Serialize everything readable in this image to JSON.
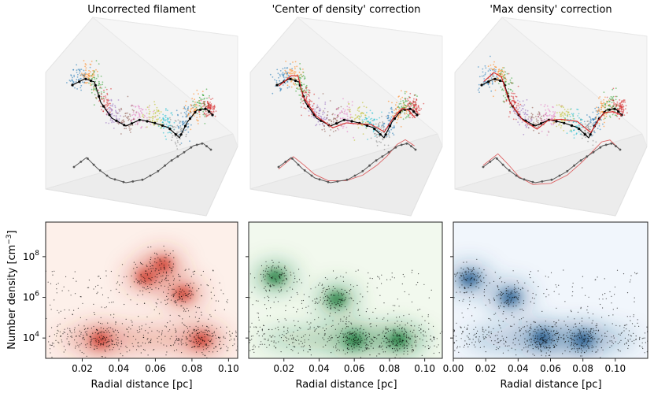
{
  "chart_data": [
    {
      "type": "scatter",
      "title": "Uncorrected filament",
      "projection": "3d",
      "axes_visible": false,
      "corrected_curve": false,
      "colors": {
        "points": "multicolor",
        "fit": "#000000",
        "shadow": "#555555"
      }
    },
    {
      "type": "scatter",
      "title": "'Center of density' correction",
      "projection": "3d",
      "axes_visible": false,
      "corrected_curve": true,
      "colors": {
        "points": "multicolor",
        "fit": "#000000",
        "corrected": "#d62728",
        "shadow": "#555555"
      }
    },
    {
      "type": "scatter",
      "title": "'Max density' correction",
      "projection": "3d",
      "axes_visible": false,
      "corrected_curve": true,
      "colors": {
        "points": "multicolor",
        "fit": "#000000",
        "corrected": "#d62728",
        "shadow": "#555555"
      }
    },
    {
      "type": "heatmap",
      "overlay": "scatter",
      "xlabel": "Radial distance [pc]",
      "ylabel": "Number density [cm",
      "ylabel_sup": "−3",
      "ylabel_end": "]",
      "ylog": true,
      "xlim": [
        0.0,
        0.105
      ],
      "ylim": [
        1000,
        5000000000
      ],
      "xticks": [
        "0.02",
        "0.04",
        "0.06",
        "0.08",
        "0.10"
      ],
      "yticks": [
        "10",
        "10",
        "10"
      ],
      "ytick_exp": [
        "4",
        "6",
        "8"
      ],
      "colormap": "Reds",
      "colors": {
        "background": "#fdf0ea",
        "dense": "#cf3a2a",
        "points": "#000000"
      },
      "density_peaks": [
        {
          "x": 0.055,
          "y": 10000000
        },
        {
          "x": 0.064,
          "y": 40000000
        },
        {
          "x": 0.075,
          "y": 1500000
        },
        {
          "x": 0.03,
          "y": 8000
        },
        {
          "x": 0.085,
          "y": 8000
        }
      ]
    },
    {
      "type": "heatmap",
      "overlay": "scatter",
      "xlabel": "Radial distance [pc]",
      "xlim": [
        0.0,
        0.11
      ],
      "ylog": true,
      "ylim": [
        1000,
        5000000000
      ],
      "xticks": [
        "0.02",
        "0.04",
        "0.06",
        "0.08",
        "0.10"
      ],
      "colormap": "Greens",
      "colors": {
        "background": "#f2f9ee",
        "dense": "#1a7a3a",
        "points": "#000000"
      },
      "density_peaks": [
        {
          "x": 0.015,
          "y": 10000000
        },
        {
          "x": 0.05,
          "y": 800000
        },
        {
          "x": 0.06,
          "y": 8000
        },
        {
          "x": 0.085,
          "y": 8000
        }
      ]
    },
    {
      "type": "heatmap",
      "overlay": "scatter",
      "xlabel": "Radial distance [pc]",
      "xlim": [
        0.0,
        0.12
      ],
      "ylog": true,
      "ylim": [
        1000,
        5000000000
      ],
      "xticks": [
        "0.00",
        "0.02",
        "0.04",
        "0.06",
        "0.08",
        "0.10"
      ],
      "colormap": "Blues",
      "colors": {
        "background": "#f1f6fc",
        "dense": "#21578c",
        "points": "#000000"
      },
      "density_peaks": [
        {
          "x": 0.01,
          "y": 8000000
        },
        {
          "x": 0.035,
          "y": 1000000
        },
        {
          "x": 0.055,
          "y": 10000
        },
        {
          "x": 0.08,
          "y": 8000
        }
      ]
    }
  ]
}
